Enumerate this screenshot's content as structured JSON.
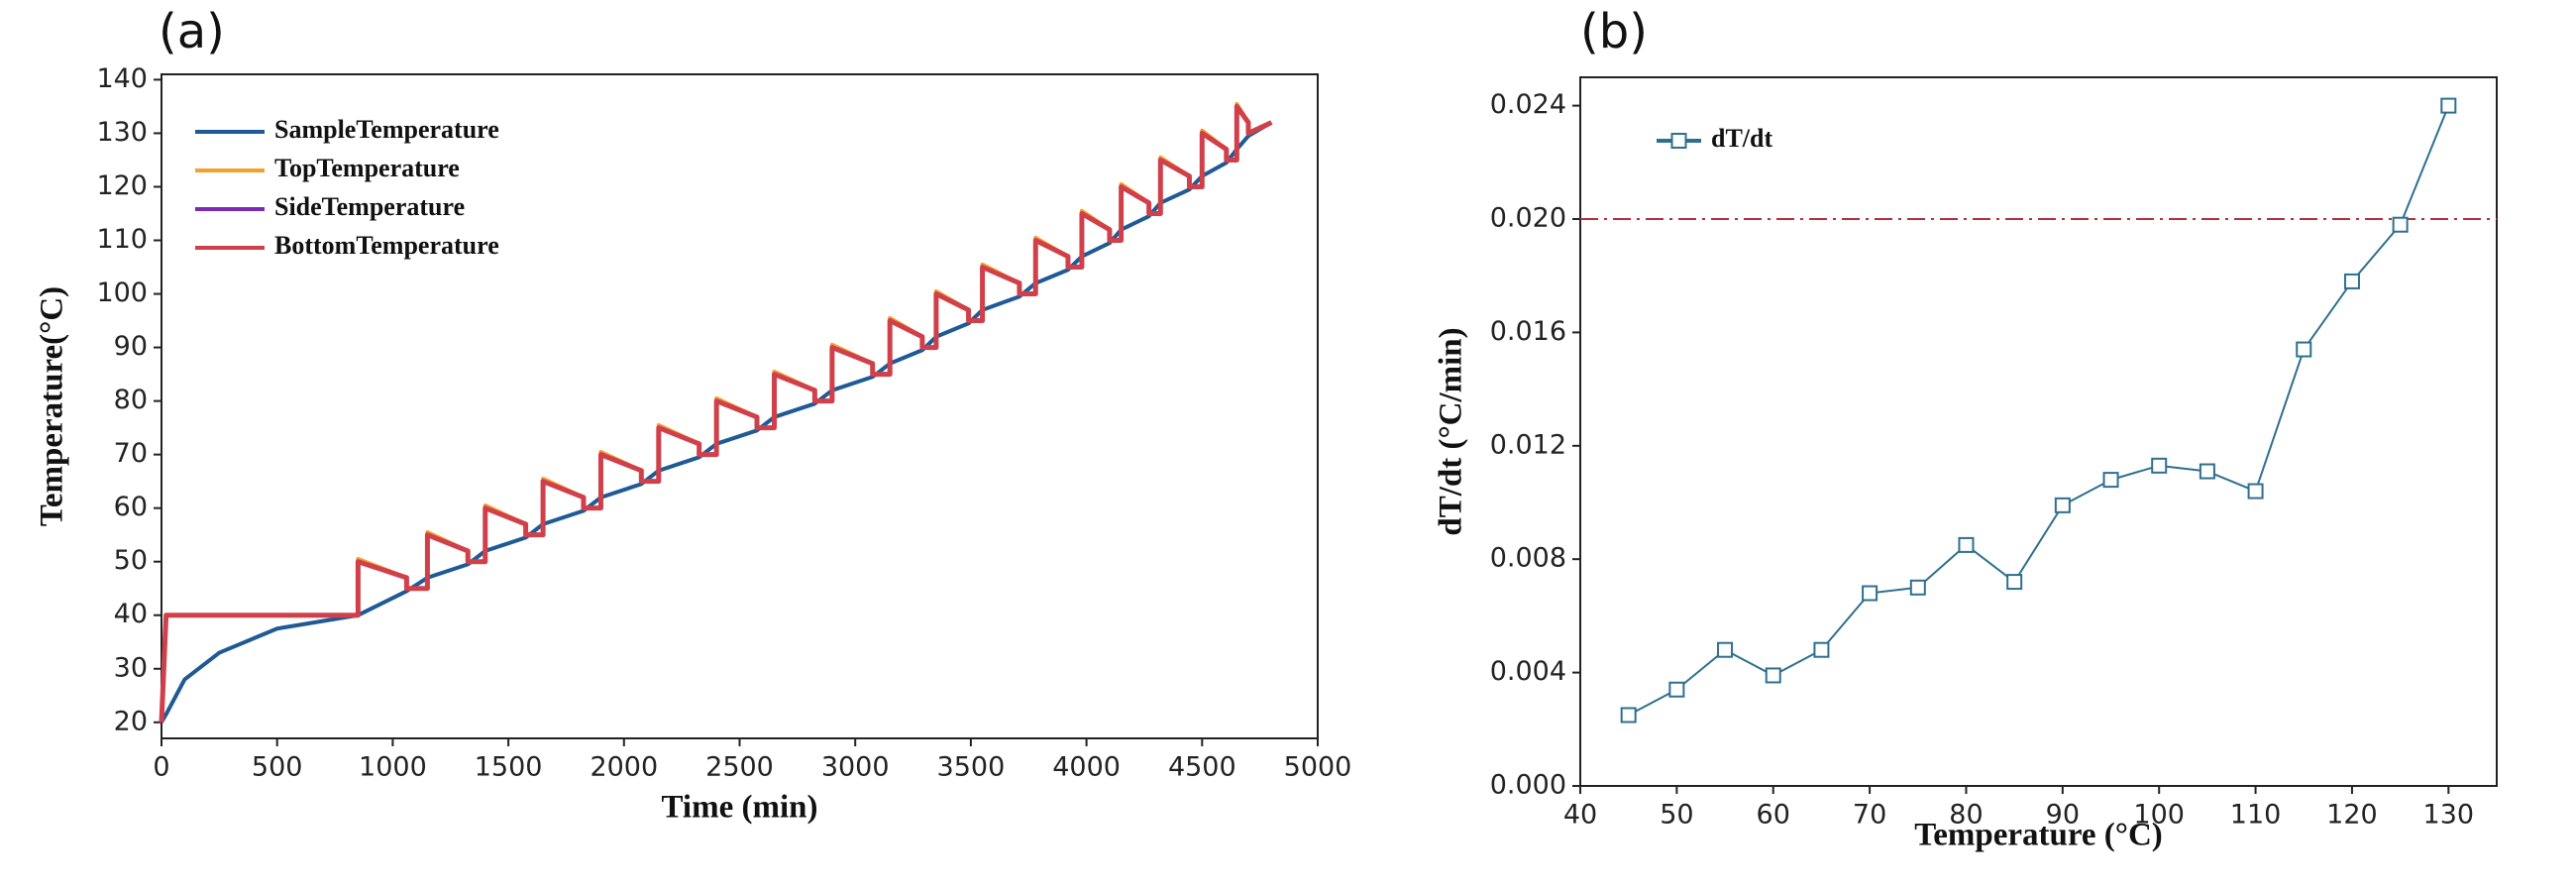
{
  "chart_data": [
    {
      "type": "line",
      "label": "(a)",
      "x_label": "Time (min)",
      "y_label": "Temperature(°C)",
      "xlim": [
        0,
        5000
      ],
      "xticks": [
        0,
        500,
        1000,
        1500,
        2000,
        2500,
        3000,
        3500,
        4000,
        4500,
        5000
      ],
      "ylim": [
        17,
        141
      ],
      "yticks": [
        20,
        30,
        40,
        50,
        60,
        70,
        80,
        90,
        100,
        110,
        120,
        130,
        140
      ],
      "legend": "upper left",
      "x": [
        0,
        20,
        100,
        250,
        500,
        850,
        850,
        1060,
        1060,
        1150,
        1150,
        1325,
        1325,
        1400,
        1400,
        1575,
        1575,
        1650,
        1650,
        1825,
        1825,
        1900,
        1900,
        2075,
        2075,
        2150,
        2150,
        2325,
        2325,
        2400,
        2400,
        2575,
        2575,
        2650,
        2650,
        2825,
        2825,
        2900,
        2900,
        3075,
        3075,
        3150,
        3150,
        3290,
        3290,
        3350,
        3350,
        3490,
        3490,
        3550,
        3550,
        3710,
        3710,
        3780,
        3780,
        3920,
        3920,
        3980,
        3980,
        4100,
        4100,
        4150,
        4150,
        4270,
        4270,
        4320,
        4320,
        4445,
        4445,
        4500,
        4500,
        4605,
        4605,
        4650,
        4650,
        4700,
        4700,
        4800
      ],
      "series": [
        {
          "name": "SampleTemperature",
          "color": "#1f5a96",
          "values": [
            20,
            21.5,
            28,
            33,
            37.5,
            40,
            40,
            44.5,
            44.5,
            47,
            47,
            49.5,
            49.5,
            52,
            52,
            54.5,
            54.5,
            57,
            57,
            59.5,
            59.5,
            62,
            62,
            64.5,
            64.5,
            67,
            67,
            69.5,
            69.5,
            72,
            72,
            74.5,
            74.5,
            77,
            77,
            79.5,
            79.5,
            82,
            82,
            84.5,
            84.5,
            87,
            87,
            89.5,
            89.5,
            92,
            92,
            94.5,
            94.5,
            97,
            97,
            99.5,
            99.5,
            102,
            102,
            104.5,
            104.5,
            107,
            107,
            109.5,
            109.5,
            112,
            112,
            114.5,
            114.5,
            117,
            117,
            119.5,
            119.5,
            122,
            122,
            124.5,
            124.5,
            127,
            127,
            129.5,
            129.5,
            132
          ]
        },
        {
          "name": "TopTemperature",
          "color": "#f5a02a",
          "values": [
            20,
            40,
            40,
            40,
            40,
            40,
            50.5,
            47,
            45,
            45,
            55.5,
            52,
            50,
            50,
            60.5,
            57,
            55,
            55,
            65.5,
            62,
            60,
            60,
            70.5,
            67,
            65,
            65,
            75.5,
            72,
            70,
            70,
            80.5,
            77,
            75,
            75,
            85.5,
            82,
            80,
            80,
            90.5,
            87,
            85,
            85,
            95.5,
            92,
            90,
            90,
            100.5,
            97,
            95,
            95,
            105.5,
            102,
            100,
            100,
            110.5,
            107,
            105,
            105,
            115.5,
            112,
            110,
            110,
            120.5,
            117,
            115,
            115,
            125.5,
            122,
            120,
            120,
            130.5,
            127,
            125,
            125,
            135.5,
            132,
            130,
            132
          ]
        },
        {
          "name": "SideTemperature",
          "color": "#7b2ab8",
          "values": [
            20,
            40,
            40,
            40,
            40,
            40,
            50,
            47,
            45,
            45,
            55,
            52,
            50,
            50,
            60,
            57,
            55,
            55,
            65,
            62,
            60,
            60,
            70,
            67,
            65,
            65,
            75,
            72,
            70,
            70,
            80,
            77,
            75,
            75,
            85,
            82,
            80,
            80,
            90,
            87,
            85,
            85,
            95,
            92,
            90,
            90,
            100,
            97,
            95,
            95,
            105,
            102,
            100,
            100,
            110,
            107,
            105,
            105,
            115,
            112,
            110,
            110,
            120,
            117,
            115,
            115,
            125,
            122,
            120,
            120,
            130,
            127,
            125,
            125,
            135,
            132,
            130,
            132
          ]
        },
        {
          "name": "BottomTemperature",
          "color": "#d0404a",
          "values": [
            20,
            40,
            40,
            40,
            40,
            40,
            50,
            47,
            45,
            45,
            55,
            52,
            50,
            50,
            60,
            57,
            55,
            55,
            65,
            62,
            60,
            60,
            70,
            67,
            65,
            65,
            75,
            72,
            70,
            70,
            80,
            77,
            75,
            75,
            85,
            82,
            80,
            80,
            90,
            87,
            85,
            85,
            95,
            92,
            90,
            90,
            100,
            97,
            95,
            95,
            105,
            102,
            100,
            100,
            110,
            107,
            105,
            105,
            115,
            112,
            110,
            110,
            120,
            117,
            115,
            115,
            125,
            122,
            120,
            120,
            130,
            127,
            125,
            125,
            135,
            132,
            130,
            132
          ]
        }
      ]
    },
    {
      "type": "line",
      "label": "(b)",
      "x_label": "Temperature (°C)",
      "y_label": "dT/dt (°C/min)",
      "xlim": [
        40,
        135
      ],
      "xticks": [
        40,
        50,
        60,
        70,
        80,
        90,
        100,
        110,
        120,
        130
      ],
      "ylim": [
        0,
        0.025
      ],
      "yticks": [
        {
          "value": 0,
          "label": "0.000"
        },
        {
          "value": 0.004,
          "label": "0.004"
        },
        {
          "value": 0.008,
          "label": "0.008"
        },
        {
          "value": 0.012,
          "label": "0.012"
        },
        {
          "value": 0.016,
          "label": "0.016"
        },
        {
          "value": 0.02,
          "label": "0.020"
        },
        {
          "value": 0.024,
          "label": "0.024"
        }
      ],
      "legend": "upper left",
      "hline": {
        "value": 0.02,
        "color": "#b03040"
      },
      "x": [
        45,
        50,
        55,
        60,
        65,
        70,
        75,
        80,
        85,
        90,
        95,
        100,
        105,
        110,
        115,
        120,
        125,
        130
      ],
      "series": [
        {
          "name": "dT/dt",
          "color": "#2e6f8e",
          "marker": "square",
          "values": [
            0.0025,
            0.0034,
            0.0048,
            0.0039,
            0.0048,
            0.0068,
            0.007,
            0.0085,
            0.0072,
            0.0099,
            0.0108,
            0.0113,
            0.0111,
            0.0104,
            0.0154,
            0.0178,
            0.0198,
            0.024
          ]
        }
      ]
    }
  ]
}
